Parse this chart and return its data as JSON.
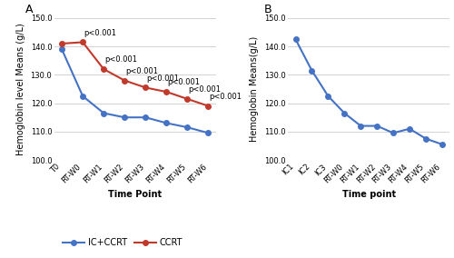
{
  "panel_a": {
    "title": "A",
    "xlabel": "Time Point",
    "ylabel": "Hemoglobin level Means (g/L)",
    "x_labels": [
      "T0",
      "RT-W0",
      "RT-W1",
      "RT-W2",
      "RT-W3",
      "RT-W4",
      "RT-W5",
      "RT-W6"
    ],
    "ic_ccrt_values": [
      139.0,
      122.5,
      116.5,
      115.0,
      115.0,
      113.0,
      111.5,
      109.5
    ],
    "ccrt_values": [
      141.0,
      141.5,
      132.0,
      128.0,
      125.5,
      124.0,
      121.5,
      119.0
    ],
    "ic_ccrt_color": "#4472C4",
    "ccrt_color": "#C0392B",
    "ylim": [
      100.0,
      150.0
    ],
    "yticks": [
      100.0,
      110.0,
      120.0,
      130.0,
      140.0,
      150.0
    ],
    "p_values": [
      "p<0.001",
      "p<0.001",
      "p<0.001",
      "p<0.001",
      "p<0.001",
      "p<0.001",
      "p<0.001"
    ],
    "p_positions": [
      1,
      2,
      3,
      4,
      5,
      6,
      7
    ],
    "legend_labels": [
      "IC+CCRT",
      "CCRT"
    ],
    "marker": "o",
    "linewidth": 1.5,
    "markersize": 4
  },
  "panel_b": {
    "title": "B",
    "xlabel": "Time point",
    "ylabel": "Hemoglobin Means(g/L)",
    "x_labels": [
      "IC1",
      "IC2",
      "IC3",
      "RT-W0",
      "RT-W1",
      "RT-W2",
      "RT-W3",
      "RT-W4",
      "RT-W5",
      "RT-W6"
    ],
    "values": [
      142.5,
      131.5,
      122.5,
      116.5,
      112.0,
      112.0,
      109.5,
      111.0,
      107.5,
      105.5
    ],
    "color": "#4472C4",
    "ylim": [
      100.0,
      150.0
    ],
    "yticks": [
      100.0,
      110.0,
      120.0,
      130.0,
      140.0,
      150.0
    ],
    "marker": "o",
    "linewidth": 1.5,
    "markersize": 4
  },
  "background_color": "#ffffff",
  "grid_color": "#d3d3d3",
  "tick_fontsize": 6,
  "label_fontsize": 7,
  "title_fontsize": 9,
  "annotation_fontsize": 6,
  "legend_fontsize": 7
}
